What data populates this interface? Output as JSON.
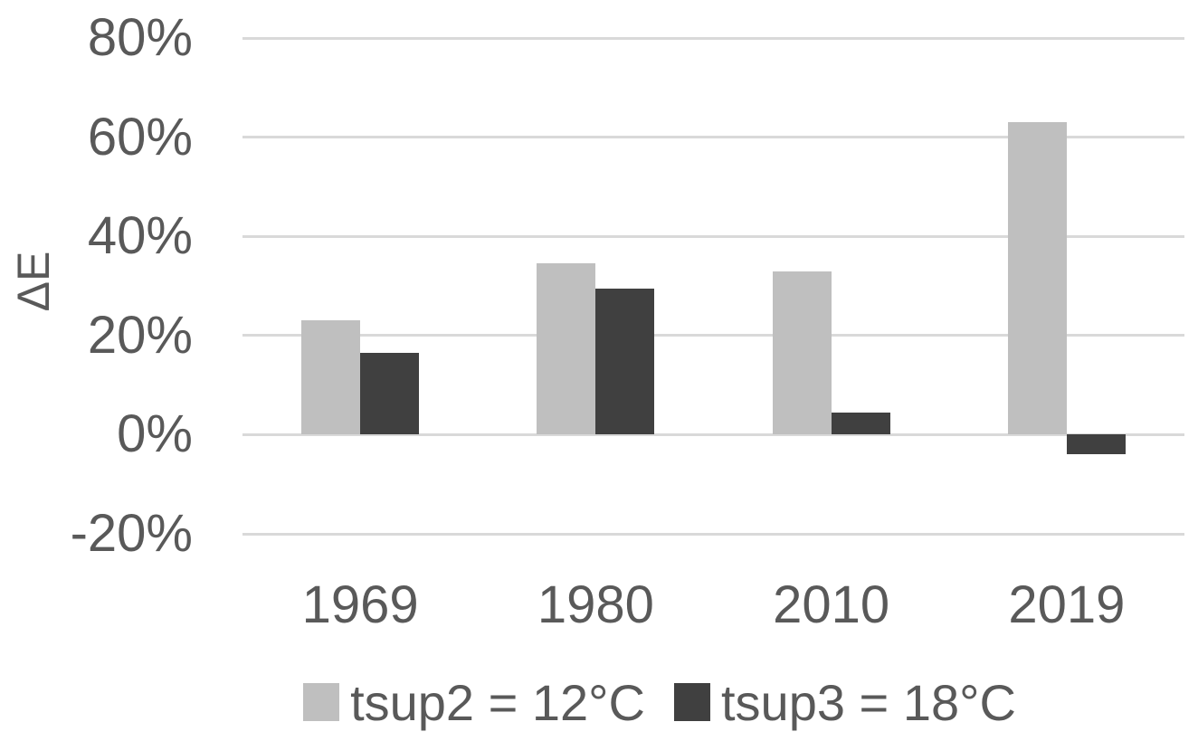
{
  "chart_data": {
    "type": "bar",
    "title": "",
    "xlabel": "",
    "ylabel": "ΔE",
    "categories": [
      "1969",
      "1980",
      "2010",
      "2019"
    ],
    "series": [
      {
        "name": "tsup2 = 12°C",
        "color": "#bfbfbf",
        "values": [
          23,
          34.5,
          33,
          63
        ]
      },
      {
        "name": "tsup3 = 18°C",
        "color": "#404040",
        "values": [
          16.5,
          29.5,
          4.5,
          -4
        ]
      }
    ],
    "ylim": [
      -20,
      80
    ],
    "yticks": [
      {
        "value": 80,
        "label": "80%"
      },
      {
        "value": 60,
        "label": "60%"
      },
      {
        "value": 40,
        "label": "40%"
      },
      {
        "value": 20,
        "label": "20%"
      },
      {
        "value": 0,
        "label": "0%"
      },
      {
        "value": -20,
        "label": "-20%"
      }
    ],
    "grid": true,
    "legend_position": "bottom",
    "colors": {
      "grid": "#d9d9d9",
      "text": "#595959",
      "background": "#ffffff"
    }
  }
}
